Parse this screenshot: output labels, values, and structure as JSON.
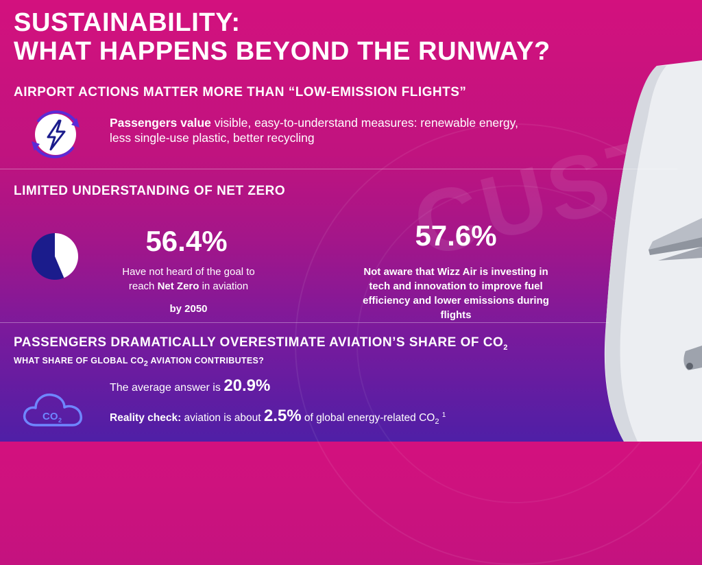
{
  "header": {
    "title_line1": "SUSTAINABILITY:",
    "title_line2": "WHAT HAPPENS BEYOND THE RUNWAY?"
  },
  "background": {
    "watermark_text": "CUSTO"
  },
  "section1": {
    "title": "AIRPORT ACTIONS MATTER MORE THAN “LOW-EMISSION FLIGHTS”",
    "icon": "lightning-bolt-cycle-icon",
    "lead_bold": "Passengers value",
    "body_line1": " visible, easy-to-understand measures: renewable energy,",
    "body_line2": "less single-use plastic, better recycling"
  },
  "section2": {
    "title": "LIMITED UNDERSTANDING OF NET ZERO",
    "pie_icon": "pie-chart-icon",
    "pie_share_percent": 56.4,
    "stat1": {
      "value": "56.4%",
      "line1": "Have not heard of the goal to",
      "line2_pre": "reach ",
      "line2_bold": "Net Zero",
      "line2_post": " in aviation",
      "line3": "by 2050"
    },
    "stat2": {
      "value": "57.6%",
      "line1": "Not aware that Wizz Air is investing in",
      "line2": "tech and innovation to improve fuel",
      "line3": "efficiency and lower emissions during",
      "line4": "flights"
    }
  },
  "section3": {
    "title_pre": "PASSENGERS DRAMATICALLY OVERESTIMATE AVIATION’S SHARE OF CO",
    "title_sub": "2",
    "question_pre": "WHAT SHARE OF GLOBAL CO",
    "question_sub": "2",
    "question_post": " AVIATION CONTRIBUTES?",
    "cloud_icon": "co2-cloud-icon",
    "cloud_label": "CO",
    "cloud_label_sub": "2",
    "avg_pre": "The average answer is ",
    "avg_value": "20.9%",
    "reality_bold": "Reality check:",
    "reality_mid": " aviation is about ",
    "reality_value": "2.5%",
    "reality_post": " of global energy-related CO",
    "reality_sub": "2",
    "reality_footnote": "1"
  },
  "colors": {
    "bg_top": "#d3117e",
    "bg_bottom": "#4f1fa6",
    "navy": "#1b1c8c",
    "icon_ring": "#5b2bd6",
    "cloud_stroke": "#6f86ff",
    "plane_body": "#eef0f3"
  }
}
